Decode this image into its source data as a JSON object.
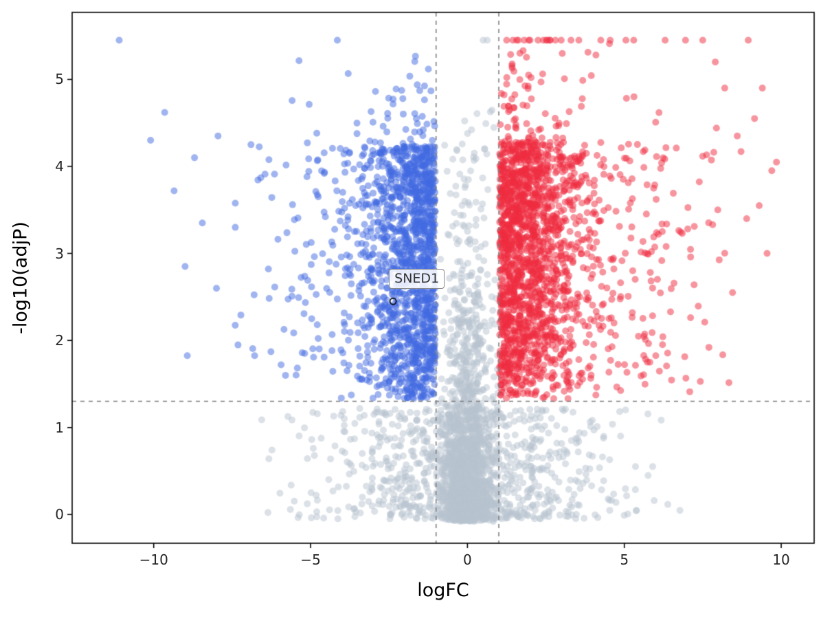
{
  "chart_data": {
    "type": "scatter",
    "title": "",
    "xlabel": "logFC",
    "ylabel": "-log10(adjP)",
    "xlim": [
      -12.6,
      11.05
    ],
    "ylim": [
      -0.33,
      5.77
    ],
    "x_ticks": [
      -10,
      -5,
      0,
      5,
      10
    ],
    "y_ticks": [
      0,
      1,
      2,
      3,
      4,
      5
    ],
    "grid": false,
    "legend": "none",
    "alpha": 0.5,
    "marker_radius": 5,
    "colors": {
      "up": "#ef2c3f",
      "down": "#4169e1",
      "ns": "#b7c3cf"
    },
    "threshold_lines": {
      "style": "dashed",
      "color": "#7f7f7f",
      "vertical_x": [
        -1,
        1
      ],
      "horizontal_y": 1.301
    },
    "color_rule": {
      "fc_threshold": 1,
      "p_threshold": 1.301,
      "up_label": "upregulated",
      "down_label": "downregulated",
      "ns_label": "not-significant"
    },
    "annotation": {
      "label": "SNED1",
      "x": -2.37,
      "y": 2.45
    },
    "generator": {
      "seed": 42,
      "clusters": [
        {
          "kind": "center",
          "n": 1500,
          "x_sd": 0.45,
          "x_clip": 0.99,
          "y_scale": 0.95,
          "y_max": 4.65
        },
        {
          "kind": "dome",
          "n": 850,
          "x_sd": 2.3,
          "x_max": 6.8,
          "y_pow": 1.25,
          "y_top": 1.27
        },
        {
          "kind": "down",
          "n": 1500,
          "x_start": 1.02,
          "x_sd": 1.15,
          "tail_p": 0.12,
          "tail_len": 4.5,
          "x_lim": 11.3,
          "y_base": 1.33,
          "y_span": 2.9,
          "y_pow": 0.9,
          "y_tail_p": 0.13,
          "y_tail_len": 1.35
        },
        {
          "kind": "up",
          "n": 1900,
          "x_start": 1.02,
          "x_sd": 1.25,
          "tail_p": 0.15,
          "tail_len": 5.5,
          "x_lim": 10.0,
          "y_base": 1.33,
          "y_span": 2.95,
          "y_pow": 0.85,
          "y_tail_p": 0.16,
          "y_tail_len": 1.5
        }
      ],
      "capped_points": {
        "y": 5.45,
        "ns_x": [
          0.5,
          0.63
        ],
        "down_x": [
          -11.1
        ],
        "up_x": [
          1.25,
          1.45,
          1.62,
          1.95,
          2.25,
          2.55,
          2.62,
          3.3,
          3.55,
          4.25,
          4.55,
          5.05,
          5.3,
          6.3,
          6.95,
          7.5,
          8.95
        ]
      },
      "extra_points": {
        "down": [
          [
            -9.65,
            4.62
          ],
          [
            -9.35,
            3.72
          ],
          [
            -8.45,
            3.35
          ],
          [
            -7.95,
            4.35
          ],
          [
            -10.1,
            4.3
          ],
          [
            -8.0,
            2.6
          ],
          [
            -7.4,
            3.3
          ],
          [
            -6.9,
            4.25
          ],
          [
            -9.0,
            2.85
          ],
          [
            -8.7,
            4.1
          ]
        ],
        "up": [
          [
            9.85,
            4.05
          ],
          [
            9.55,
            3.0
          ],
          [
            9.4,
            4.9
          ],
          [
            8.9,
            3.4
          ],
          [
            9.15,
            4.55
          ],
          [
            8.45,
            2.55
          ],
          [
            9.7,
            3.95
          ],
          [
            8.2,
            4.9
          ],
          [
            7.9,
            5.2
          ],
          [
            8.6,
            4.35
          ],
          [
            9.3,
            3.55
          ]
        ]
      }
    }
  }
}
